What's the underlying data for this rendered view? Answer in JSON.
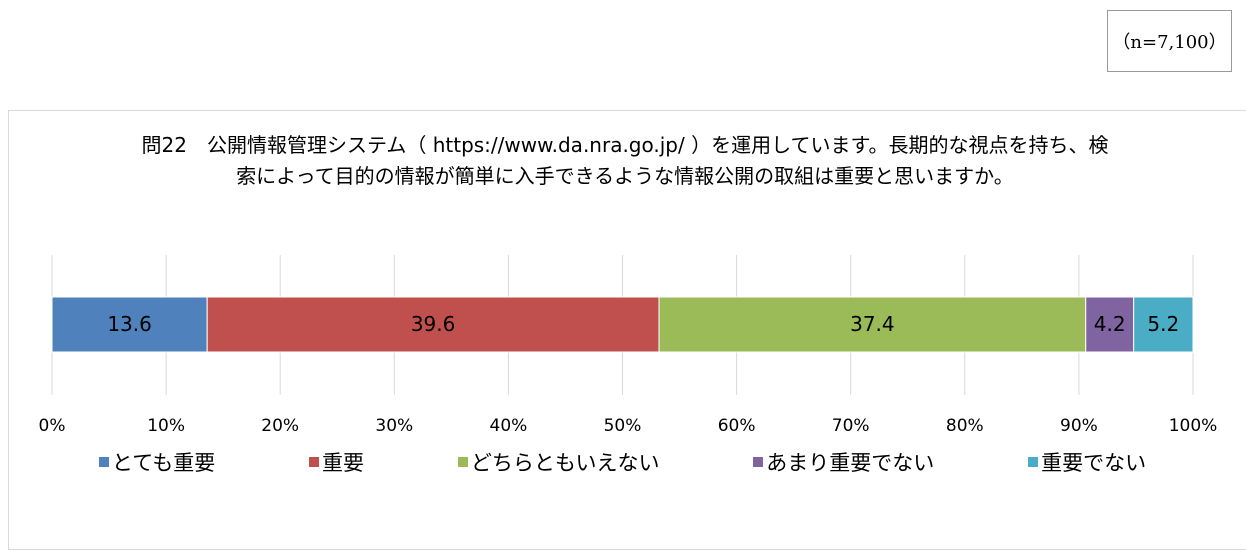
{
  "chart_data": {
    "type": "stacked-bar-horizontal",
    "title": "問22　公開情報管理システム（ https://www.da.nra.go.jp/ ）を運用しています。長期的な視点を持ち、検索によって目的の情報が簡単に入手できるような情報公開の取組は重要と思いますか。",
    "annotation": "（n=7,100）",
    "categories": [
      null
    ],
    "series": [
      {
        "name": "とても重要",
        "color": "#4f81bd",
        "values": [
          13.6
        ]
      },
      {
        "name": "重要",
        "color": "#c0504d",
        "values": [
          39.6
        ]
      },
      {
        "name": "どちらともいえない",
        "color": "#9bbb59",
        "values": [
          37.4
        ]
      },
      {
        "name": "あまり重要でない",
        "color": "#8064a2",
        "values": [
          4.2
        ]
      },
      {
        "name": "重要でない",
        "color": "#4bacc6",
        "values": [
          5.2
        ]
      }
    ],
    "xlim": [
      0,
      100
    ],
    "xticks": [
      {
        "value": 0,
        "label": "0%"
      },
      {
        "value": 10,
        "label": "10%"
      },
      {
        "value": 20,
        "label": "20%"
      },
      {
        "value": 30,
        "label": "30%"
      },
      {
        "value": 40,
        "label": "40%"
      },
      {
        "value": 50,
        "label": "50%"
      },
      {
        "value": 60,
        "label": "60%"
      },
      {
        "value": 70,
        "label": "70%"
      },
      {
        "value": 80,
        "label": "80%"
      },
      {
        "value": 90,
        "label": "90%"
      },
      {
        "value": 100,
        "label": "100%"
      }
    ],
    "grid": true,
    "legend": "bottom"
  }
}
